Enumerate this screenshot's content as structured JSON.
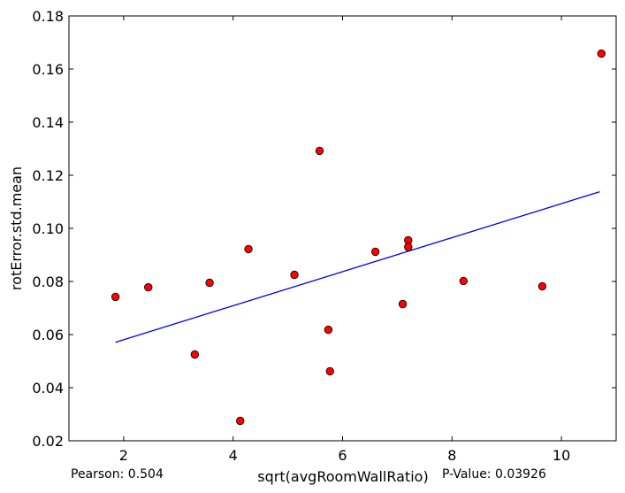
{
  "chart_data": {
    "type": "scatter",
    "xlabel": "sqrt(avgRoomWallRatio)",
    "ylabel": "rotError.std.mean",
    "xlim": [
      1,
      11
    ],
    "ylim": [
      0.02,
      0.18
    ],
    "x_ticks": [
      2,
      4,
      6,
      8,
      10
    ],
    "y_ticks": [
      0.02,
      0.04,
      0.06,
      0.08,
      0.1,
      0.12,
      0.14,
      0.16,
      0.18
    ],
    "y_tick_labels": [
      "0.02",
      "0.04",
      "0.06",
      "0.08",
      "0.10",
      "0.12",
      "0.14",
      "0.16",
      "0.18"
    ],
    "grid": false,
    "marker_color": "#ff0000",
    "line_color": "#0000ff",
    "points": [
      {
        "x": 1.85,
        "y": 0.0742
      },
      {
        "x": 2.45,
        "y": 0.0778
      },
      {
        "x": 3.3,
        "y": 0.0525
      },
      {
        "x": 3.57,
        "y": 0.0795
      },
      {
        "x": 4.13,
        "y": 0.0275
      },
      {
        "x": 4.28,
        "y": 0.0922
      },
      {
        "x": 5.12,
        "y": 0.0825
      },
      {
        "x": 5.58,
        "y": 0.1292
      },
      {
        "x": 5.74,
        "y": 0.0618
      },
      {
        "x": 5.77,
        "y": 0.0462
      },
      {
        "x": 6.6,
        "y": 0.0912
      },
      {
        "x": 7.1,
        "y": 0.0715
      },
      {
        "x": 7.2,
        "y": 0.0955
      },
      {
        "x": 7.2,
        "y": 0.093
      },
      {
        "x": 8.21,
        "y": 0.0802
      },
      {
        "x": 9.65,
        "y": 0.0782
      },
      {
        "x": 10.73,
        "y": 0.1658
      }
    ],
    "fit_line": [
      {
        "x": 1.85,
        "y": 0.0571
      },
      {
        "x": 10.7,
        "y": 0.1138
      }
    ]
  },
  "annotations": {
    "pearson": "Pearson: 0.504",
    "p_value": "P-Value: 0.03926"
  }
}
